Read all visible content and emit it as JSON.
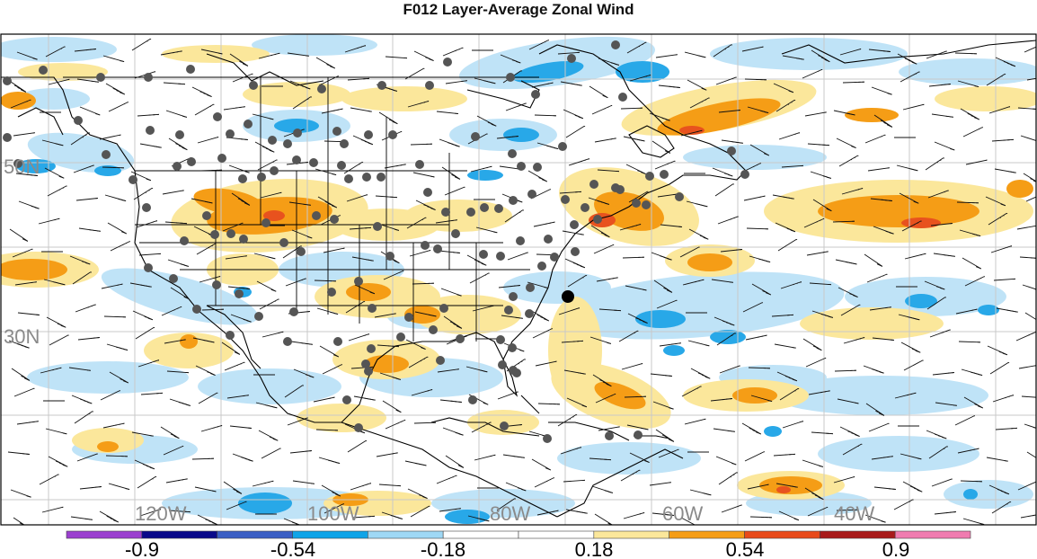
{
  "title": "F012 Layer-Average Zonal Wind",
  "colors": {
    "light_blue": "#bfe3f7",
    "blue": "#28a8e8",
    "light_orange": "#fbe79b",
    "orange": "#f59d16",
    "red_orange": "#e8521e",
    "station": "#555555",
    "highlight_station": "#000000"
  },
  "lat_labels": [
    "50N",
    "30N"
  ],
  "lon_labels": [
    "120W",
    "100W",
    "80W",
    "60W",
    "40W"
  ],
  "colorbar": {
    "segments": [
      "#9b3fcf",
      "#0a0a8a",
      "#3b5fc4",
      "#0fa4e8",
      "#9fd8f5",
      "#ffffff",
      "#ffffff",
      "#fbe79b",
      "#f59d16",
      "#e84a1a",
      "#a81a1a",
      "#f07cb0"
    ],
    "tick_labels": [
      "-0.9",
      "-0.54",
      "-0.18",
      "0.18",
      "0.54",
      "0.9"
    ]
  }
}
